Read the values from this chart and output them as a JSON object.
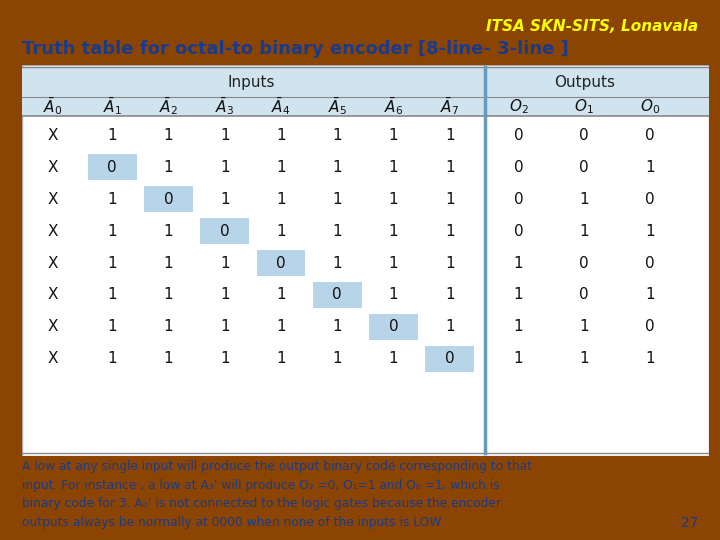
{
  "bg_color": "#8B4500",
  "title_line1": "ITSA SKN-SITS, Lonavala",
  "title_line1_color": "#FFFF00",
  "title_line2": "Truth table for octal-to binary encoder [8-line- 3-line ]",
  "title_line2_color": "#1a3a8a",
  "table_header_bg": "#d0e4f0",
  "inputs_label": "Inputs",
  "outputs_label": "Outputs",
  "rows": [
    [
      "X",
      "1",
      "1",
      "1",
      "1",
      "1",
      "1",
      "1",
      "0",
      "0",
      "0"
    ],
    [
      "X",
      "0",
      "1",
      "1",
      "1",
      "1",
      "1",
      "1",
      "0",
      "0",
      "1"
    ],
    [
      "X",
      "1",
      "0",
      "1",
      "1",
      "1",
      "1",
      "1",
      "0",
      "1",
      "0"
    ],
    [
      "X",
      "1",
      "1",
      "0",
      "1",
      "1",
      "1",
      "1",
      "0",
      "1",
      "1"
    ],
    [
      "X",
      "1",
      "1",
      "1",
      "0",
      "1",
      "1",
      "1",
      "1",
      "0",
      "0"
    ],
    [
      "X",
      "1",
      "1",
      "1",
      "1",
      "0",
      "1",
      "1",
      "1",
      "0",
      "1"
    ],
    [
      "X",
      "1",
      "1",
      "1",
      "1",
      "1",
      "0",
      "1",
      "1",
      "1",
      "0"
    ],
    [
      "X",
      "1",
      "1",
      "1",
      "1",
      "1",
      "1",
      "0",
      "1",
      "1",
      "1"
    ]
  ],
  "highlight_col_per_row": [
    -1,
    1,
    2,
    3,
    4,
    5,
    6,
    7
  ],
  "highlight_color": "#b8d4e8",
  "footer_text": "A low at any single input will produce the output binary code corresponding to that\ninput. For instance , a low at A₃’ will produce O₂ =0, O₁=1 and O₀ =1, which is\nbinary code for 3. A₀’ is not connected to the logic gates because the encoder\noutputs always be normally at 0000 when none of the inputs is LOW",
  "footer_page": "27",
  "footer_color": "#1a3a8a"
}
